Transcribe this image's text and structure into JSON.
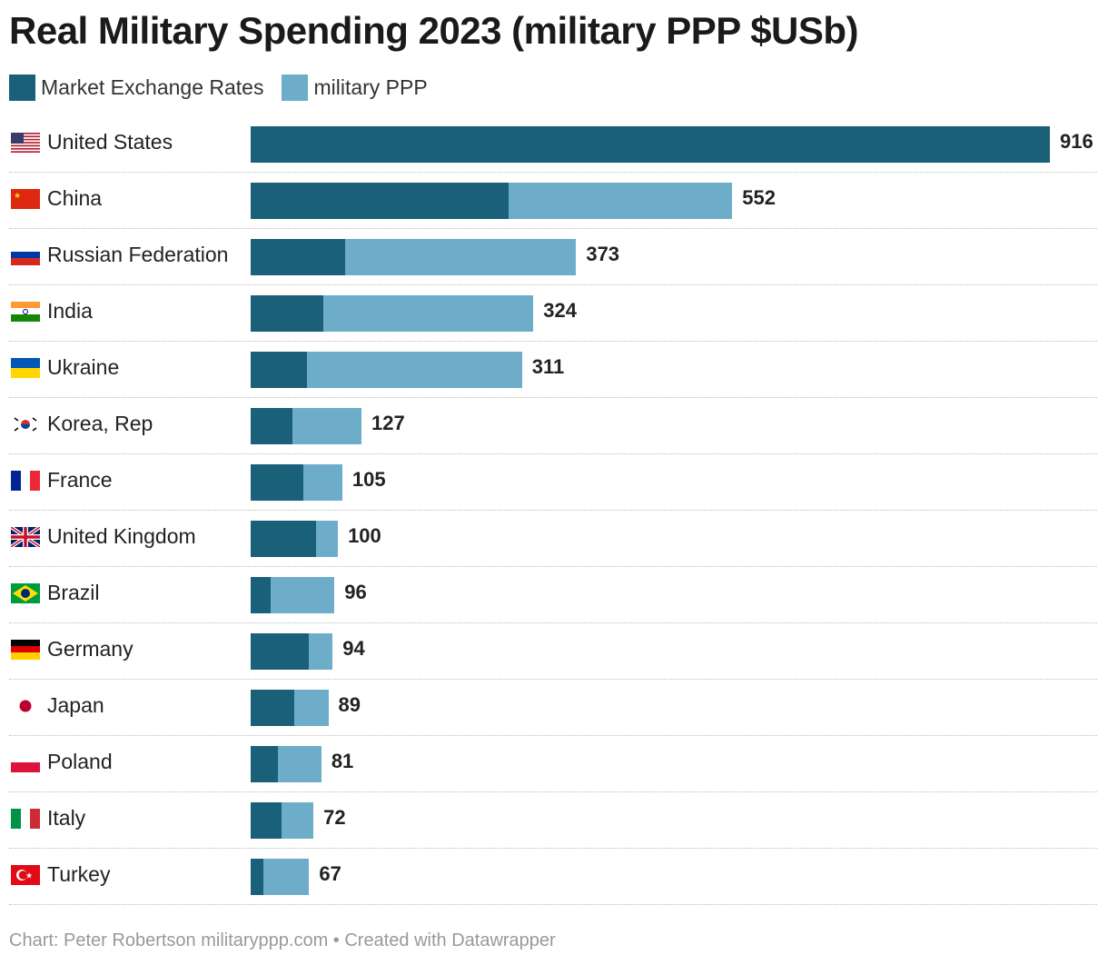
{
  "title": "Real Military Spending 2023 (military PPP $USb)",
  "legend": [
    {
      "label": "Market Exchange Rates",
      "color": "#1a6079"
    },
    {
      "label": "military PPP",
      "color": "#6eadca"
    }
  ],
  "footer": "Chart: Peter Robertson militaryppp.com • Created with Datawrapper",
  "chart_data": {
    "type": "bar",
    "orientation": "horizontal",
    "title": "Real Military Spending 2023 (military PPP $USb)",
    "categories": [
      "United States",
      "China",
      "Russian Federation",
      "India",
      "Ukraine",
      "Korea, Rep",
      "France",
      "United Kingdom",
      "Brazil",
      "Germany",
      "Japan",
      "Poland",
      "Italy",
      "Turkey"
    ],
    "flags": [
      "us",
      "cn",
      "ru",
      "in",
      "ua",
      "kr",
      "fr",
      "gb",
      "br",
      "de",
      "jp",
      "pl",
      "it",
      "tr"
    ],
    "series": [
      {
        "name": "Market Exchange Rates",
        "values": [
          916,
          296,
          108,
          83,
          65,
          48,
          60,
          75,
          23,
          67,
          50,
          31,
          35,
          15
        ]
      },
      {
        "name": "military PPP",
        "values": [
          916,
          552,
          373,
          324,
          311,
          127,
          105,
          100,
          96,
          94,
          89,
          81,
          72,
          67
        ]
      }
    ],
    "labels": [
      "916",
      "552",
      "373",
      "324",
      "311",
      "127",
      "105",
      "100",
      "96",
      "94",
      "89",
      "81",
      "72",
      "67"
    ],
    "xlim": [
      0,
      916
    ],
    "grid": false,
    "legend_position": "top-left"
  }
}
